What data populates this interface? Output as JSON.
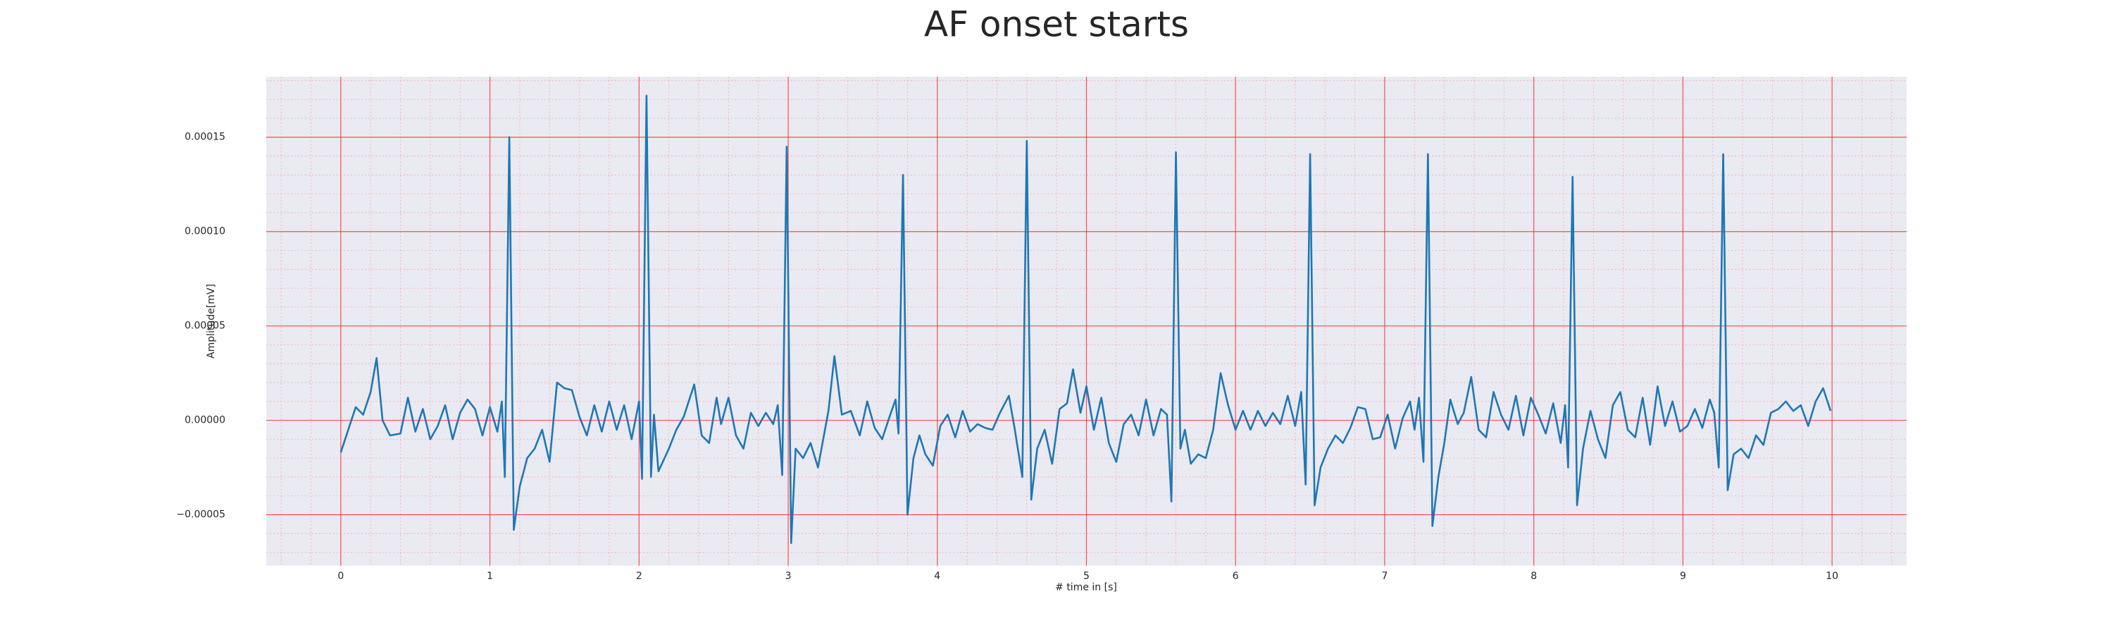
{
  "chart_data": {
    "type": "line",
    "title": "AF onset starts",
    "xlabel": "# time in [s]",
    "ylabel": "Amplitude[mV]",
    "color": "#1f77b4",
    "grid": true,
    "minor_grid": true,
    "xlim": [
      -0.5,
      10.5
    ],
    "ylim": [
      -7.7e-05,
      0.000182
    ],
    "xticks": [
      0,
      1,
      2,
      3,
      4,
      5,
      6,
      7,
      8,
      9,
      10
    ],
    "yticks": [
      {
        "value": -5e-05,
        "label": "−0.00005"
      },
      {
        "value": 0,
        "label": "0.00000"
      },
      5e-05,
      {
        "value": 0.0001,
        "label": "0.00010"
      },
      0.00015
    ],
    "x": [
      0,
      0.05,
      0.1,
      0.15,
      0.2,
      0.24,
      0.28,
      0.33,
      0.4,
      0.45,
      0.5,
      0.55,
      0.6,
      0.65,
      0.7,
      0.75,
      0.8,
      0.85,
      0.9,
      0.95,
      1.0,
      1.05,
      1.08,
      1.1,
      1.13,
      1.16,
      1.2,
      1.25,
      1.3,
      1.35,
      1.4,
      1.45,
      1.5,
      1.55,
      1.6,
      1.65,
      1.7,
      1.75,
      1.8,
      1.85,
      1.9,
      1.95,
      2.0,
      2.02,
      2.05,
      2.08,
      2.1,
      2.13,
      2.2,
      2.25,
      2.3,
      2.37,
      2.42,
      2.47,
      2.52,
      2.55,
      2.6,
      2.65,
      2.7,
      2.75,
      2.8,
      2.85,
      2.9,
      2.93,
      2.96,
      2.99,
      3.02,
      3.05,
      3.1,
      3.15,
      3.2,
      3.27,
      3.31,
      3.36,
      3.42,
      3.48,
      3.53,
      3.58,
      3.63,
      3.68,
      3.72,
      3.74,
      3.77,
      3.8,
      3.84,
      3.88,
      3.92,
      3.97,
      4.02,
      4.07,
      4.12,
      4.17,
      4.22,
      4.27,
      4.32,
      4.37,
      4.42,
      4.48,
      4.52,
      4.57,
      4.6,
      4.63,
      4.67,
      4.72,
      4.77,
      4.82,
      4.87,
      4.91,
      4.96,
      5.0,
      5.05,
      5.1,
      5.15,
      5.2,
      5.25,
      5.3,
      5.35,
      5.4,
      5.45,
      5.5,
      5.54,
      5.57,
      5.6,
      5.63,
      5.66,
      5.7,
      5.75,
      5.8,
      5.85,
      5.9,
      5.95,
      6.0,
      6.05,
      6.1,
      6.15,
      6.2,
      6.25,
      6.3,
      6.35,
      6.4,
      6.44,
      6.47,
      6.5,
      6.53,
      6.57,
      6.62,
      6.67,
      6.72,
      6.77,
      6.82,
      6.87,
      6.92,
      6.97,
      7.02,
      7.07,
      7.12,
      7.17,
      7.2,
      7.23,
      7.26,
      7.29,
      7.32,
      7.36,
      7.4,
      7.44,
      7.49,
      7.53,
      7.58,
      7.63,
      7.68,
      7.73,
      7.78,
      7.83,
      7.88,
      7.93,
      7.98,
      8.03,
      8.08,
      8.13,
      8.18,
      8.21,
      8.23,
      8.26,
      8.29,
      8.33,
      8.38,
      8.43,
      8.48,
      8.53,
      8.58,
      8.63,
      8.68,
      8.73,
      8.78,
      8.83,
      8.88,
      8.93,
      8.98,
      9.03,
      9.08,
      9.13,
      9.18,
      9.21,
      9.24,
      9.27,
      9.3,
      9.34,
      9.39,
      9.44,
      9.49,
      9.54,
      9.59,
      9.64,
      9.69,
      9.74,
      9.79,
      9.84,
      9.89,
      9.94,
      9.99
    ],
    "values": [
      -1.7e-05,
      -5e-06,
      7e-06,
      3e-06,
      1.5e-05,
      3.3e-05,
      0,
      -8e-06,
      -7e-06,
      1.2e-05,
      -6e-06,
      6e-06,
      -1e-05,
      -3e-06,
      8e-06,
      -1e-05,
      4e-06,
      1.1e-05,
      6e-06,
      -8e-06,
      7e-06,
      -6e-06,
      1e-05,
      -3e-05,
      0.00015,
      -5.8e-05,
      -3.5e-05,
      -2e-05,
      -1.5e-05,
      -5e-06,
      -2.2e-05,
      2e-05,
      1.7e-05,
      1.6e-05,
      2e-06,
      -8e-06,
      8e-06,
      -6e-06,
      1e-05,
      -5e-06,
      8e-06,
      -1e-05,
      1e-05,
      -3.1e-05,
      0.000172,
      -3e-05,
      3e-06,
      -2.7e-05,
      -1.5e-05,
      -5e-06,
      2e-06,
      1.9e-05,
      -8e-06,
      -1.2e-05,
      1.2e-05,
      -2e-06,
      1.2e-05,
      -8e-06,
      -1.5e-05,
      4e-06,
      -3e-06,
      4e-06,
      -2e-06,
      8e-06,
      -2.9e-05,
      0.000145,
      -6.5e-05,
      -1.5e-05,
      -2e-05,
      -1.2e-05,
      -2.5e-05,
      5e-06,
      3.4e-05,
      3e-06,
      5e-06,
      -8e-06,
      1e-05,
      -4e-06,
      -1e-05,
      2e-06,
      1.1e-05,
      -7e-06,
      0.00013,
      -5e-05,
      -2e-05,
      -8e-06,
      -1.8e-05,
      -2.4e-05,
      -3e-06,
      3e-06,
      -9e-06,
      5e-06,
      -6e-06,
      -2e-06,
      -4e-06,
      -5e-06,
      4e-06,
      1.3e-05,
      -5e-06,
      -3e-05,
      0.000148,
      -4.2e-05,
      -1.5e-05,
      -5e-06,
      -2.3e-05,
      6e-06,
      9e-06,
      2.7e-05,
      4e-06,
      1.8e-05,
      -5e-06,
      1.2e-05,
      -1.2e-05,
      -2.2e-05,
      -2e-06,
      3e-06,
      -8e-06,
      1.1e-05,
      -8e-06,
      6e-06,
      3e-06,
      -4.3e-05,
      0.000142,
      -1.5e-05,
      -5e-06,
      -2.3e-05,
      -1.8e-05,
      -2e-05,
      -5e-06,
      2.5e-05,
      8e-06,
      -5e-06,
      5e-06,
      -5e-06,
      5e-06,
      -3e-06,
      4e-06,
      -2e-06,
      1.3e-05,
      -3e-06,
      1.5e-05,
      -3.4e-05,
      0.000141,
      -4.5e-05,
      -2.5e-05,
      -1.5e-05,
      -8e-06,
      -1.2e-05,
      -4e-06,
      7e-06,
      6e-06,
      -1e-05,
      -9e-06,
      3e-06,
      -1.5e-05,
      1e-06,
      1e-05,
      -5e-06,
      1.2e-05,
      -2.2e-05,
      0.000141,
      -5.6e-05,
      -3e-05,
      -1.2e-05,
      1.1e-05,
      -2e-06,
      4e-06,
      2.3e-05,
      -5e-06,
      -9e-06,
      1.5e-05,
      3e-06,
      -5e-06,
      1.3e-05,
      -8e-06,
      1.2e-05,
      3e-06,
      -7e-06,
      9e-06,
      -1.2e-05,
      8e-06,
      -2.5e-05,
      0.000129,
      -4.5e-05,
      -1.5e-05,
      5e-06,
      -1e-05,
      -2e-05,
      8e-06,
      1.5e-05,
      -5e-06,
      -9e-06,
      1.2e-05,
      -1.3e-05,
      1.8e-05,
      -3e-06,
      1e-05,
      -6e-06,
      -3e-06,
      6e-06,
      -4e-06,
      1.1e-05,
      4e-06,
      -2.5e-05,
      0.000141,
      -3.7e-05,
      -1.8e-05,
      -1.5e-05,
      -2e-05,
      -8e-06,
      -1.3e-05,
      4e-06,
      6e-06,
      1e-05,
      5e-06,
      8e-06,
      -3e-06,
      1e-05,
      1.7e-05,
      5e-06
    ]
  }
}
